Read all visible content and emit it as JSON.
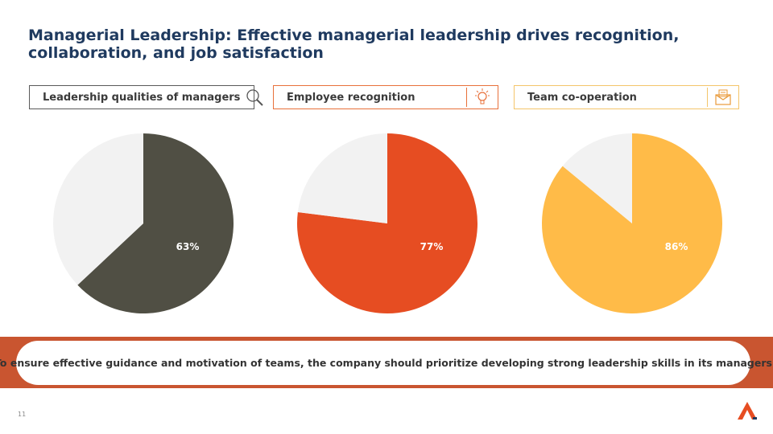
{
  "title": "Managerial Leadership: Effective managerial leadership drives recognition, collaboration, and job satisfaction",
  "headers": [
    {
      "label": "Leadership qualities of managers",
      "icon": "magnifier-icon"
    },
    {
      "label": "Employee recognition",
      "icon": "lightbulb-icon"
    },
    {
      "label": "Team co-operation",
      "icon": "envelope-icon"
    }
  ],
  "chart_data": [
    {
      "type": "pie",
      "title": "Leadership qualities of managers",
      "slices": [
        {
          "label": "63%",
          "value": 63,
          "color": "#504f44"
        },
        {
          "label": "",
          "value": 37,
          "color": "#f2f2f2"
        }
      ]
    },
    {
      "type": "pie",
      "title": "Employee recognition",
      "slices": [
        {
          "label": "77%",
          "value": 77,
          "color": "#e64d22"
        },
        {
          "label": "",
          "value": 23,
          "color": "#f2f2f2"
        }
      ]
    },
    {
      "type": "pie",
      "title": "Team co-operation",
      "slices": [
        {
          "label": "86%",
          "value": 86,
          "color": "#ffbb48"
        },
        {
          "label": "",
          "value": 14,
          "color": "#f2f2f2"
        }
      ]
    }
  ],
  "callout": "To ensure effective guidance and motivation of teams, the company should prioritize developing strong leadership skills in its managers",
  "page_number": "11",
  "colors": {
    "title": "#1f3a5f",
    "band": "#c95530"
  }
}
